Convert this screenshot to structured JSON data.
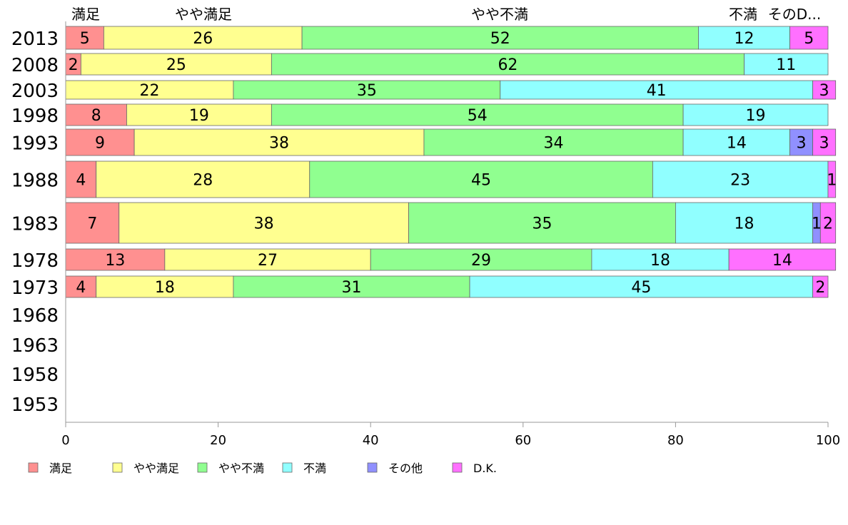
{
  "chart_data": {
    "type": "bar",
    "orientation": "horizontal",
    "stacked": true,
    "categories": [
      "2013",
      "2008",
      "2003",
      "1998",
      "1993",
      "1988",
      "1983",
      "1978",
      "1973",
      "1968",
      "1963",
      "1958",
      "1953"
    ],
    "series": [
      {
        "name": "満足",
        "color": "#ff9090",
        "values": [
          5,
          2,
          0,
          8,
          9,
          4,
          7,
          13,
          4,
          null,
          null,
          null,
          null
        ]
      },
      {
        "name": "やや満足",
        "color": "#ffff90",
        "values": [
          26,
          25,
          22,
          19,
          38,
          28,
          38,
          27,
          18,
          null,
          null,
          null,
          null
        ]
      },
      {
        "name": "やや不満",
        "color": "#90ff90",
        "values": [
          52,
          62,
          35,
          54,
          34,
          45,
          35,
          29,
          31,
          null,
          null,
          null,
          null
        ]
      },
      {
        "name": "不満",
        "color": "#90ffff",
        "values": [
          12,
          11,
          41,
          19,
          14,
          23,
          18,
          18,
          45,
          null,
          null,
          null,
          null
        ]
      },
      {
        "name": "その他",
        "color": "#9090ff",
        "values": [
          0,
          0,
          0,
          0,
          3,
          0,
          1,
          0,
          0,
          null,
          null,
          null,
          null
        ]
      },
      {
        "name": "D.K.",
        "color": "#ff70ff",
        "values": [
          5,
          0,
          3,
          0,
          3,
          1,
          2,
          14,
          2,
          null,
          null,
          null,
          null
        ]
      }
    ],
    "top_labels": [
      "満足",
      "やや満足",
      "やや不満",
      "不満",
      "そのD..."
    ],
    "x_ticks": [
      0,
      20,
      40,
      60,
      80,
      100
    ],
    "xlim": [
      0,
      100
    ],
    "grid": false,
    "legend_position": "bottom"
  }
}
